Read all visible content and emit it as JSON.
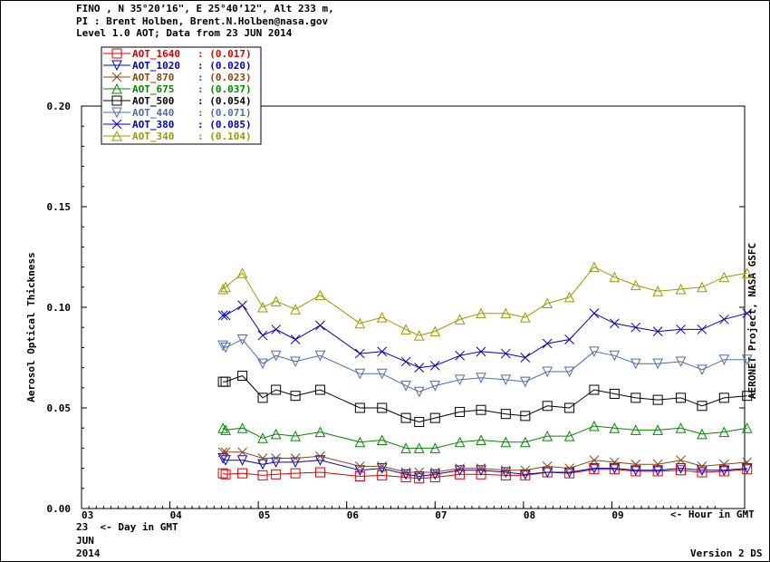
{
  "header": {
    "line1": "FINO , N 35°20’16\", E 25°40’12\", Alt 233 m,",
    "line2": "PI : Brent Holben, Brent.N.Holben@nasa.gov",
    "line3": "Level 1.0 AOT; Data from 23 JUN 2014"
  },
  "footer": {
    "date_day": "23",
    "day_label": "<- Day in GMT",
    "date_month": "JUN",
    "date_year": "2014",
    "version": "Version 2 DS",
    "hour_label": "<- Hour in GMT"
  },
  "colors": {
    "AOT_1640": "#dd0000",
    "AOT_1020": "#0000cc",
    "AOT_870": "#8b4513",
    "AOT_675": "#008800",
    "AOT_500": "#000000",
    "AOT_440": "#4a6fa5",
    "AOT_380": "#0000bb",
    "AOT_340": "#999900"
  },
  "chart_data": {
    "type": "line",
    "ylabel": "Aerosol Optical Thickness",
    "right_label": "AERONET Project, NASA GSFC",
    "ylim": [
      0.0,
      0.2
    ],
    "yticks": [
      "0.00",
      "0.05",
      "0.10",
      "0.15",
      "0.20"
    ],
    "xlim": [
      3,
      10.2
    ],
    "xticks": [
      "03",
      "04",
      "05",
      "06",
      "07",
      "08",
      "09"
    ],
    "x": [
      4.6,
      4.63,
      4.82,
      5.05,
      5.2,
      5.42,
      5.7,
      6.15,
      6.4,
      6.67,
      6.82,
      7.0,
      7.28,
      7.52,
      7.8,
      8.02,
      8.27,
      8.52,
      8.8,
      9.03,
      9.27,
      9.52,
      9.78,
      10.02,
      10.27,
      10.53
    ],
    "series": [
      {
        "name": "AOT_1640",
        "value_label": "(0.017)",
        "marker": "square",
        "values": [
          0.0175,
          0.017,
          0.0175,
          0.0165,
          0.017,
          0.0175,
          0.018,
          0.016,
          0.0165,
          0.0155,
          0.015,
          0.0155,
          0.017,
          0.017,
          0.0165,
          0.0165,
          0.018,
          0.0175,
          0.0195,
          0.0195,
          0.0185,
          0.0185,
          0.019,
          0.018,
          0.0185,
          0.0195
        ]
      },
      {
        "name": "AOT_1020",
        "value_label": "(0.020)",
        "marker": "tri-down",
        "values": [
          0.025,
          0.024,
          0.024,
          0.022,
          0.023,
          0.023,
          0.024,
          0.019,
          0.02,
          0.017,
          0.016,
          0.017,
          0.019,
          0.019,
          0.018,
          0.017,
          0.018,
          0.018,
          0.02,
          0.02,
          0.019,
          0.019,
          0.02,
          0.019,
          0.019,
          0.02
        ]
      },
      {
        "name": "AOT_870",
        "value_label": "(0.023)",
        "marker": "x",
        "values": [
          0.028,
          0.028,
          0.028,
          0.025,
          0.025,
          0.025,
          0.026,
          0.021,
          0.021,
          0.018,
          0.018,
          0.018,
          0.02,
          0.02,
          0.019,
          0.019,
          0.021,
          0.02,
          0.024,
          0.023,
          0.022,
          0.022,
          0.024,
          0.021,
          0.022,
          0.023
        ]
      },
      {
        "name": "AOT_675",
        "value_label": "(0.037)",
        "marker": "tri-up",
        "values": [
          0.04,
          0.039,
          0.04,
          0.035,
          0.037,
          0.036,
          0.038,
          0.033,
          0.034,
          0.03,
          0.03,
          0.03,
          0.033,
          0.034,
          0.033,
          0.033,
          0.036,
          0.036,
          0.041,
          0.04,
          0.039,
          0.039,
          0.04,
          0.037,
          0.038,
          0.04
        ]
      },
      {
        "name": "AOT_500",
        "value_label": "(0.054)",
        "marker": "square",
        "values": [
          0.063,
          0.063,
          0.066,
          0.055,
          0.059,
          0.056,
          0.059,
          0.05,
          0.05,
          0.045,
          0.043,
          0.045,
          0.048,
          0.049,
          0.047,
          0.046,
          0.051,
          0.05,
          0.059,
          0.057,
          0.055,
          0.054,
          0.055,
          0.051,
          0.055,
          0.056
        ]
      },
      {
        "name": "AOT_440",
        "value_label": "(0.071)",
        "marker": "tri-down",
        "values": [
          0.081,
          0.08,
          0.084,
          0.072,
          0.076,
          0.073,
          0.076,
          0.067,
          0.067,
          0.061,
          0.058,
          0.061,
          0.064,
          0.065,
          0.064,
          0.063,
          0.068,
          0.068,
          0.078,
          0.076,
          0.072,
          0.072,
          0.073,
          0.069,
          0.074,
          0.074
        ]
      },
      {
        "name": "AOT_380",
        "value_label": "(0.085)",
        "marker": "x",
        "values": [
          0.096,
          0.096,
          0.101,
          0.086,
          0.089,
          0.084,
          0.091,
          0.077,
          0.078,
          0.073,
          0.07,
          0.071,
          0.076,
          0.078,
          0.077,
          0.075,
          0.082,
          0.084,
          0.097,
          0.092,
          0.09,
          0.088,
          0.089,
          0.089,
          0.094,
          0.097
        ]
      },
      {
        "name": "AOT_340",
        "value_label": "(0.104)",
        "marker": "tri-up",
        "values": [
          0.109,
          0.11,
          0.117,
          0.1,
          0.103,
          0.099,
          0.106,
          0.092,
          0.095,
          0.089,
          0.086,
          0.088,
          0.094,
          0.097,
          0.097,
          0.095,
          0.102,
          0.105,
          0.12,
          0.115,
          0.111,
          0.108,
          0.109,
          0.11,
          0.115,
          0.117
        ]
      }
    ]
  }
}
